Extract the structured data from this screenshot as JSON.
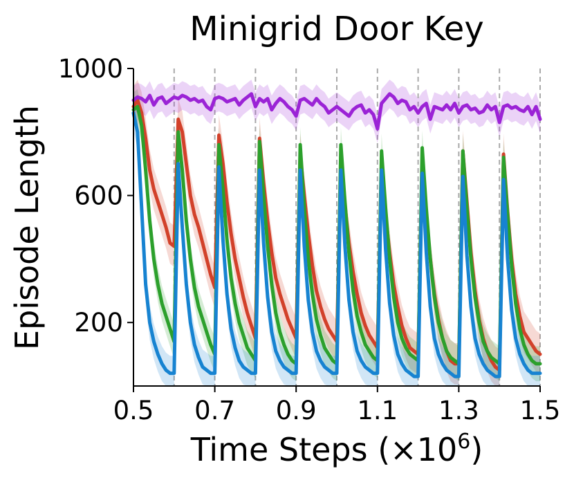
{
  "chart_data": {
    "type": "line",
    "title": "Minigrid Door Key",
    "xlabel": "Time Steps (×10",
    "xlabel_exponent": "6",
    "xlabel_suffix": ")",
    "ylabel": "Episode Length",
    "xlim": [
      0.5,
      1.5
    ],
    "ylim": [
      0,
      1000
    ],
    "xticks": [
      0.5,
      0.7,
      0.9,
      1.1,
      1.3,
      1.5
    ],
    "xtick_labels": [
      "0.5",
      "0.7",
      "0.9",
      "1.1",
      "1.3",
      "1.5"
    ],
    "yticks": [
      200,
      600,
      1000
    ],
    "ytick_labels": [
      "200",
      "600",
      "1000"
    ],
    "task_switch_lines": [
      0.6,
      0.7,
      0.8,
      0.9,
      1.0,
      1.1,
      1.2,
      1.3,
      1.4,
      1.5
    ],
    "grid": false,
    "legend": "none",
    "series": [
      {
        "color": "#9b23d6",
        "band_width": 45,
        "x": [
          0.5,
          0.51,
          0.52,
          0.53,
          0.54,
          0.55,
          0.56,
          0.57,
          0.58,
          0.59,
          0.6,
          0.61,
          0.62,
          0.63,
          0.64,
          0.65,
          0.66,
          0.67,
          0.68,
          0.69,
          0.7,
          0.71,
          0.72,
          0.73,
          0.74,
          0.75,
          0.76,
          0.77,
          0.78,
          0.79,
          0.8,
          0.81,
          0.82,
          0.83,
          0.84,
          0.85,
          0.86,
          0.87,
          0.88,
          0.89,
          0.9,
          0.91,
          0.92,
          0.93,
          0.94,
          0.95,
          0.96,
          0.97,
          0.98,
          0.99,
          1.0,
          1.01,
          1.02,
          1.03,
          1.04,
          1.05,
          1.06,
          1.07,
          1.08,
          1.09,
          1.1,
          1.11,
          1.12,
          1.13,
          1.14,
          1.15,
          1.16,
          1.17,
          1.18,
          1.19,
          1.2,
          1.21,
          1.22,
          1.23,
          1.24,
          1.25,
          1.26,
          1.27,
          1.28,
          1.29,
          1.3,
          1.31,
          1.32,
          1.33,
          1.34,
          1.35,
          1.36,
          1.37,
          1.38,
          1.39,
          1.4,
          1.41,
          1.42,
          1.43,
          1.44,
          1.45,
          1.46,
          1.47,
          1.48,
          1.49,
          1.5
        ],
        "values": [
          900,
          910,
          905,
          895,
          915,
          885,
          905,
          910,
          890,
          900,
          910,
          905,
          915,
          910,
          900,
          905,
          895,
          900,
          880,
          870,
          905,
          910,
          905,
          895,
          900,
          905,
          885,
          900,
          910,
          920,
          880,
          905,
          895,
          905,
          870,
          890,
          905,
          895,
          880,
          870,
          850,
          900,
          905,
          895,
          885,
          905,
          890,
          880,
          860,
          870,
          880,
          870,
          860,
          850,
          870,
          880,
          885,
          860,
          870,
          855,
          810,
          890,
          905,
          920,
          910,
          890,
          900,
          895,
          870,
          880,
          860,
          880,
          890,
          840,
          880,
          875,
          870,
          885,
          870,
          890,
          860,
          880,
          885,
          870,
          875,
          860,
          865,
          885,
          870,
          880,
          830,
          880,
          885,
          875,
          880,
          870,
          865,
          880,
          855,
          880,
          840
        ]
      },
      {
        "color": "#d2412a",
        "band_width": 65,
        "x": [
          0.5,
          0.51,
          0.52,
          0.53,
          0.54,
          0.55,
          0.56,
          0.57,
          0.58,
          0.59,
          0.6,
          0.61,
          0.62,
          0.63,
          0.64,
          0.65,
          0.66,
          0.67,
          0.68,
          0.69,
          0.7,
          0.71,
          0.72,
          0.73,
          0.74,
          0.75,
          0.76,
          0.77,
          0.78,
          0.79,
          0.8,
          0.81,
          0.82,
          0.83,
          0.84,
          0.85,
          0.86,
          0.87,
          0.88,
          0.89,
          0.9,
          0.91,
          0.92,
          0.93,
          0.94,
          0.95,
          0.96,
          0.97,
          0.98,
          0.99,
          1.0,
          1.01,
          1.02,
          1.03,
          1.04,
          1.05,
          1.06,
          1.07,
          1.08,
          1.09,
          1.1,
          1.11,
          1.12,
          1.13,
          1.14,
          1.15,
          1.16,
          1.17,
          1.18,
          1.19,
          1.2,
          1.21,
          1.22,
          1.23,
          1.24,
          1.25,
          1.26,
          1.27,
          1.28,
          1.29,
          1.3,
          1.31,
          1.32,
          1.33,
          1.34,
          1.35,
          1.36,
          1.37,
          1.38,
          1.39,
          1.4,
          1.41,
          1.42,
          1.43,
          1.44,
          1.45,
          1.46,
          1.47,
          1.48,
          1.49,
          1.5
        ],
        "values": [
          880,
          900,
          860,
          780,
          680,
          620,
          580,
          540,
          500,
          450,
          440,
          840,
          800,
          700,
          600,
          540,
          500,
          450,
          400,
          350,
          310,
          790,
          700,
          580,
          480,
          400,
          340,
          280,
          230,
          190,
          150,
          780,
          640,
          520,
          420,
          340,
          290,
          250,
          210,
          180,
          150,
          730,
          600,
          480,
          380,
          300,
          250,
          210,
          180,
          160,
          140,
          700,
          570,
          450,
          360,
          290,
          230,
          190,
          160,
          140,
          120,
          680,
          540,
          420,
          320,
          250,
          190,
          150,
          120,
          110,
          100,
          680,
          530,
          400,
          290,
          210,
          150,
          110,
          80,
          70,
          70,
          740,
          580,
          420,
          300,
          210,
          150,
          110,
          80,
          60,
          50,
          730,
          550,
          400,
          290,
          220,
          170,
          150,
          130,
          110,
          100
        ]
      },
      {
        "color": "#2ca02c",
        "band_width": 55,
        "x": [
          0.5,
          0.51,
          0.52,
          0.53,
          0.54,
          0.55,
          0.56,
          0.57,
          0.58,
          0.59,
          0.6,
          0.61,
          0.62,
          0.63,
          0.64,
          0.65,
          0.66,
          0.67,
          0.68,
          0.69,
          0.7,
          0.71,
          0.72,
          0.73,
          0.74,
          0.75,
          0.76,
          0.77,
          0.78,
          0.79,
          0.8,
          0.81,
          0.82,
          0.83,
          0.84,
          0.85,
          0.86,
          0.87,
          0.88,
          0.89,
          0.9,
          0.91,
          0.92,
          0.93,
          0.94,
          0.95,
          0.96,
          0.97,
          0.98,
          0.99,
          1.0,
          1.01,
          1.02,
          1.03,
          1.04,
          1.05,
          1.06,
          1.07,
          1.08,
          1.09,
          1.1,
          1.11,
          1.12,
          1.13,
          1.14,
          1.15,
          1.16,
          1.17,
          1.18,
          1.19,
          1.2,
          1.21,
          1.22,
          1.23,
          1.24,
          1.25,
          1.26,
          1.27,
          1.28,
          1.29,
          1.3,
          1.31,
          1.32,
          1.33,
          1.34,
          1.35,
          1.36,
          1.37,
          1.38,
          1.39,
          1.4,
          1.41,
          1.42,
          1.43,
          1.44,
          1.45,
          1.46,
          1.47,
          1.48,
          1.49,
          1.5
        ],
        "values": [
          870,
          880,
          820,
          680,
          520,
          400,
          320,
          260,
          220,
          180,
          140,
          800,
          680,
          520,
          400,
          310,
          250,
          210,
          170,
          130,
          100,
          760,
          620,
          460,
          340,
          260,
          200,
          160,
          120,
          100,
          80,
          770,
          600,
          440,
          320,
          230,
          170,
          130,
          100,
          80,
          70,
          760,
          560,
          400,
          290,
          210,
          160,
          120,
          100,
          80,
          70,
          760,
          580,
          420,
          300,
          220,
          170,
          130,
          110,
          90,
          80,
          740,
          560,
          400,
          280,
          200,
          150,
          120,
          100,
          90,
          80,
          750,
          560,
          400,
          280,
          200,
          150,
          110,
          90,
          80,
          70,
          740,
          560,
          400,
          280,
          200,
          140,
          110,
          90,
          80,
          70,
          720,
          540,
          380,
          260,
          180,
          130,
          100,
          80,
          70,
          70
        ]
      },
      {
        "color": "#1783d1",
        "band_width": 55,
        "x": [
          0.5,
          0.51,
          0.52,
          0.53,
          0.54,
          0.55,
          0.56,
          0.57,
          0.58,
          0.59,
          0.6,
          0.61,
          0.62,
          0.63,
          0.64,
          0.65,
          0.66,
          0.67,
          0.68,
          0.69,
          0.7,
          0.71,
          0.72,
          0.73,
          0.74,
          0.75,
          0.76,
          0.77,
          0.78,
          0.79,
          0.8,
          0.81,
          0.82,
          0.83,
          0.84,
          0.85,
          0.86,
          0.87,
          0.88,
          0.89,
          0.9,
          0.91,
          0.92,
          0.93,
          0.94,
          0.95,
          0.96,
          0.97,
          0.98,
          0.99,
          1.0,
          1.01,
          1.02,
          1.03,
          1.04,
          1.05,
          1.06,
          1.07,
          1.08,
          1.09,
          1.1,
          1.11,
          1.12,
          1.13,
          1.14,
          1.15,
          1.16,
          1.17,
          1.18,
          1.19,
          1.2,
          1.21,
          1.22,
          1.23,
          1.24,
          1.25,
          1.26,
          1.27,
          1.28,
          1.29,
          1.3,
          1.31,
          1.32,
          1.33,
          1.34,
          1.35,
          1.36,
          1.37,
          1.38,
          1.39,
          1.4,
          1.41,
          1.42,
          1.43,
          1.44,
          1.45,
          1.46,
          1.47,
          1.48,
          1.49,
          1.5
        ],
        "values": [
          860,
          800,
          560,
          320,
          200,
          140,
          100,
          70,
          50,
          40,
          40,
          700,
          500,
          320,
          200,
          130,
          90,
          60,
          50,
          40,
          40,
          690,
          460,
          290,
          180,
          120,
          80,
          60,
          50,
          40,
          40,
          680,
          450,
          280,
          170,
          110,
          80,
          60,
          50,
          40,
          40,
          680,
          440,
          270,
          170,
          110,
          80,
          60,
          50,
          40,
          40,
          680,
          440,
          270,
          170,
          110,
          80,
          60,
          50,
          40,
          40,
          680,
          430,
          260,
          160,
          100,
          70,
          50,
          40,
          30,
          30,
          670,
          420,
          250,
          150,
          100,
          70,
          50,
          40,
          30,
          30,
          660,
          410,
          250,
          150,
          100,
          70,
          50,
          40,
          30,
          30,
          650,
          400,
          240,
          150,
          100,
          70,
          50,
          40,
          40,
          40
        ]
      }
    ]
  }
}
